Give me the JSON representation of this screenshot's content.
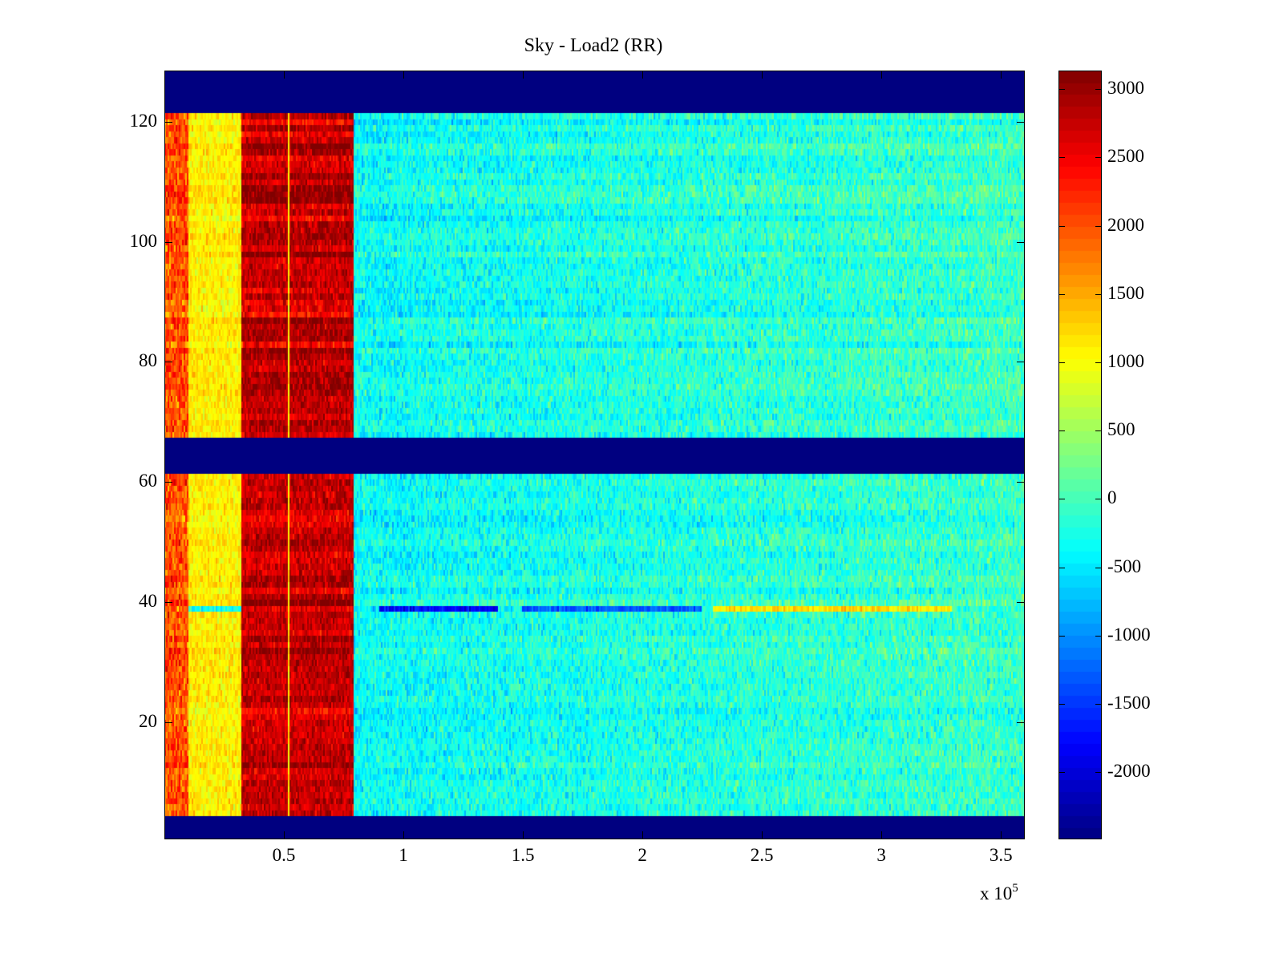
{
  "chart_data": {
    "type": "heatmap",
    "title": "Sky - Load2 (RR)",
    "xlabel": "",
    "ylabel": "",
    "x_multiplier_label": "x 10",
    "x_multiplier_exponent": "5",
    "xlim": [
      0,
      3.6
    ],
    "ylim": [
      0.5,
      128.5
    ],
    "xticks": [
      0.5,
      1,
      1.5,
      2,
      2.5,
      3,
      3.5
    ],
    "xtick_labels": [
      "0.5",
      "1",
      "1.5",
      "2",
      "2.5",
      "3",
      "3.5"
    ],
    "yticks": [
      20,
      40,
      60,
      80,
      100,
      120
    ],
    "ytick_labels": [
      "20",
      "40",
      "60",
      "80",
      "100",
      "120"
    ],
    "colormap": "jet",
    "clim": [
      -2490,
      3135
    ],
    "colorbar_ticks": [
      3000,
      2500,
      2000,
      1500,
      1000,
      500,
      0,
      -500,
      -1000,
      -1500,
      -2000
    ],
    "colorbar_tick_labels": [
      "3000",
      "2500",
      "2000",
      "1500",
      "1000",
      "500",
      "0",
      "-500",
      "-1000",
      "-1500",
      "-2000"
    ],
    "n_rows": 128,
    "empty_rows": [
      [
        1,
        4
      ],
      [
        62,
        67
      ],
      [
        122,
        128
      ]
    ],
    "column_regions": [
      {
        "x_range": [
          0,
          0.1
        ],
        "mean": 2000,
        "spread": 600
      },
      {
        "x_range": [
          0.1,
          0.32
        ],
        "mean": 1100,
        "spread": 350
      },
      {
        "x_range": [
          0.32,
          0.79
        ],
        "mean": 2750,
        "spread": 400
      },
      {
        "x_range": [
          0.79,
          3.6
        ],
        "mean": -350,
        "spread": 450,
        "trend_to_right": 300
      }
    ],
    "anomalous_row": {
      "row": 39,
      "segments": [
        {
          "x_range": [
            0.1,
            0.32
          ],
          "value": -300
        },
        {
          "x_range": [
            0.9,
            1.4
          ],
          "value": -1800
        },
        {
          "x_range": [
            1.5,
            2.25
          ],
          "value": -1300
        },
        {
          "x_range": [
            2.3,
            3.3
          ],
          "value": 1200
        }
      ]
    }
  }
}
